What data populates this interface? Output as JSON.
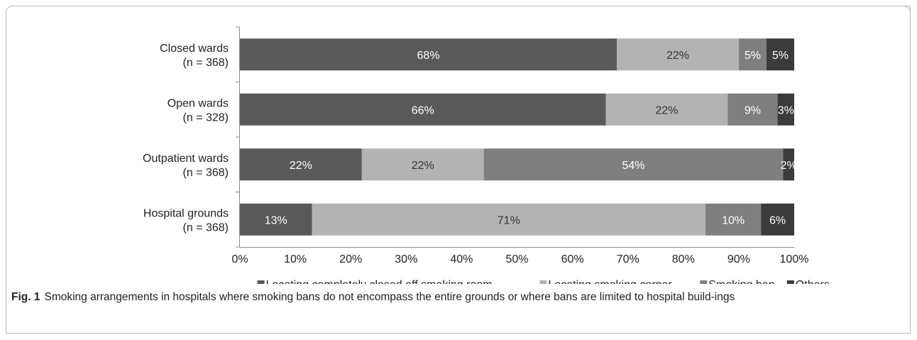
{
  "chart_data": {
    "type": "bar",
    "orientation": "horizontal",
    "stacked": true,
    "categories": [
      [
        "Closed wards",
        "(n = 368)"
      ],
      [
        "Open wards",
        "(n = 328)"
      ],
      [
        "Outpatient wards",
        "(n = 368)"
      ],
      [
        "Hospital grounds",
        "(n = 368)"
      ]
    ],
    "series": [
      {
        "name": "Locating completely closed off smoking room",
        "values": [
          68,
          66,
          22,
          13
        ],
        "color": "#595959",
        "label_color": "#ffffff"
      },
      {
        "name": "Locating smoking corner",
        "values": [
          22,
          22,
          22,
          71
        ],
        "color": "#b3b3b3",
        "label_color": "#333333"
      },
      {
        "name": "Smoking ban",
        "values": [
          5,
          9,
          54,
          10
        ],
        "color": "#7f7f7f",
        "label_color": "#ffffff"
      },
      {
        "name": "Others",
        "values": [
          5,
          3,
          2,
          6
        ],
        "color": "#3b3b3b",
        "label_color": "#ffffff"
      }
    ],
    "value_labels": [
      [
        "68%",
        "22%",
        "5%",
        "5%"
      ],
      [
        "66%",
        "22%",
        "9%",
        "3%"
      ],
      [
        "22%",
        "22%",
        "54%",
        "2%"
      ],
      [
        "13%",
        "71%",
        "10%",
        "6%"
      ]
    ],
    "xlim": [
      0,
      100
    ],
    "x_ticks": [
      "0%",
      "10%",
      "20%",
      "30%",
      "40%",
      "50%",
      "60%",
      "70%",
      "80%",
      "90%",
      "100%"
    ],
    "grid": false,
    "legend_position": "bottom"
  },
  "caption": {
    "label": "Fig. 1",
    "text": "Smoking arrangements in hospitals where smoking bans do not encompass the entire grounds or where bans are limited to hospital build-ings"
  }
}
